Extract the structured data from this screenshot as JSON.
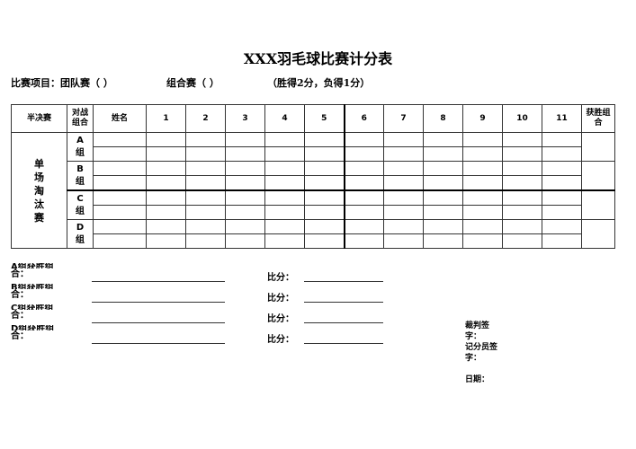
{
  "title": "XXX羽毛球比赛计分表",
  "subtitle": {
    "project": "比赛项目：团队赛（    ）",
    "combo": "组合赛（    ）",
    "rule": "（胜得2分，负得1分）"
  },
  "table": {
    "headers": {
      "round": "半决赛",
      "match_group": "对战组合",
      "name": "姓名",
      "points": [
        "1",
        "2",
        "3",
        "4",
        "5",
        "6",
        "7",
        "8",
        "9",
        "10",
        "11"
      ],
      "winner": "获胜组合"
    },
    "side_label": "单场淘汰赛",
    "groups": [
      "A组",
      "B组",
      "C组",
      "D组"
    ]
  },
  "footer": {
    "winners": [
      {
        "label_top": "A组获胜组",
        "label_bottom": "合：",
        "score": "比分："
      },
      {
        "label_top": "B组获胜组",
        "label_bottom": "合：",
        "score": "比分："
      },
      {
        "label_top": "C组获胜组",
        "label_bottom": "合：",
        "score": "比分："
      },
      {
        "label_top": "D组获胜组",
        "label_bottom": "合：",
        "score": "比分："
      }
    ],
    "referee_sign": [
      "裁判签",
      "字："
    ],
    "scorer_sign": [
      "记分员签",
      "字："
    ],
    "date": "日期："
  }
}
